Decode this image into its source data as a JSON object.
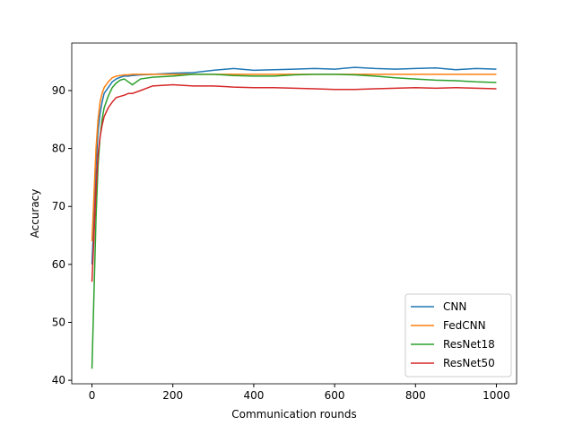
{
  "chart_data": {
    "type": "line",
    "xlabel": "Communication rounds",
    "ylabel": "Accuracy",
    "x": [
      0,
      5,
      10,
      15,
      20,
      25,
      30,
      40,
      50,
      60,
      70,
      80,
      90,
      100,
      120,
      150,
      200,
      250,
      300,
      350,
      400,
      450,
      500,
      550,
      600,
      650,
      700,
      750,
      800,
      850,
      900,
      950,
      1000
    ],
    "series": [
      {
        "name": "CNN",
        "color": "#1f77b4",
        "values": [
          60,
          68,
          77,
          83,
          86,
          88,
          89.5,
          90.5,
          91.5,
          92,
          92.3,
          92.5,
          92.5,
          92.6,
          92.7,
          92.8,
          93,
          93.1,
          93.5,
          93.8,
          93.5,
          93.6,
          93.7,
          93.8,
          93.7,
          94,
          93.8,
          93.7,
          93.8,
          93.9,
          93.6,
          93.8,
          93.7
        ]
      },
      {
        "name": "FedCNN",
        "color": "#ff7f0e",
        "values": [
          64,
          72,
          80,
          85,
          88,
          89.5,
          90.5,
          91.5,
          92.2,
          92.5,
          92.6,
          92.7,
          92.7,
          92.8,
          92.8,
          92.8,
          92.8,
          92.8,
          92.8,
          92.8,
          92.8,
          92.8,
          92.8,
          92.8,
          92.8,
          92.8,
          92.8,
          92.8,
          92.8,
          92.8,
          92.8,
          92.8,
          92.8
        ]
      },
      {
        "name": "ResNet18",
        "color": "#2ca02c",
        "values": [
          42,
          55,
          68,
          77,
          82,
          85,
          87,
          89,
          90.5,
          91.3,
          91.8,
          92,
          91.5,
          91,
          92,
          92.3,
          92.5,
          92.8,
          92.8,
          92.6,
          92.5,
          92.5,
          92.7,
          92.8,
          92.8,
          92.7,
          92.5,
          92.2,
          92,
          91.8,
          91.7,
          91.5,
          91.4
        ]
      },
      {
        "name": "ResNet50",
        "color": "#d62728",
        "values": [
          57,
          65,
          73,
          79,
          82,
          84,
          85.5,
          87,
          88,
          88.8,
          89,
          89.2,
          89.5,
          89.5,
          90,
          90.8,
          91,
          90.8,
          90.8,
          90.6,
          90.5,
          90.5,
          90.4,
          90.3,
          90.2,
          90.2,
          90.3,
          90.4,
          90.5,
          90.4,
          90.5,
          90.4,
          90.3
        ]
      }
    ],
    "xlim": [
      -50,
      1050
    ],
    "ylim": [
      39.4,
      98.2
    ],
    "xticks": [
      0,
      200,
      400,
      600,
      800,
      1000
    ],
    "yticks": [
      40,
      50,
      60,
      70,
      80,
      90
    ],
    "legend": "lower right"
  }
}
